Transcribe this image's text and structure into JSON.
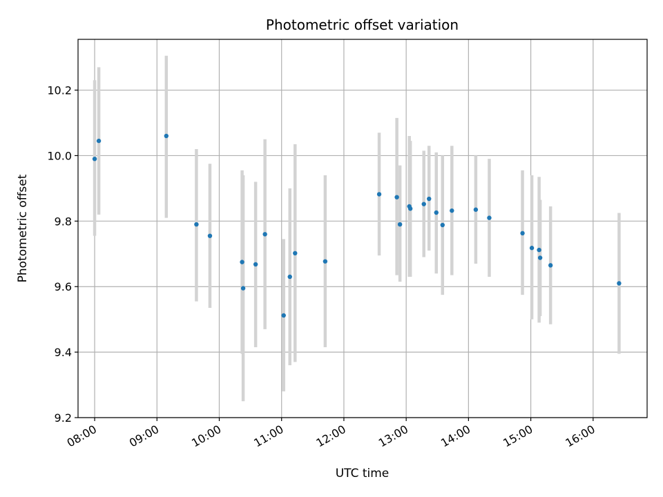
{
  "chart_data": {
    "type": "scatter",
    "title": "Photometric offset variation",
    "xlabel": "UTC time",
    "ylabel": "Photometric offset",
    "x_unit": "UTC hour of day",
    "xlim": [
      "07:44",
      "16:52"
    ],
    "ylim": [
      9.2,
      10.355
    ],
    "x_ticks": [
      "08:00",
      "09:00",
      "10:00",
      "11:00",
      "12:00",
      "13:00",
      "14:00",
      "15:00",
      "16:00"
    ],
    "y_ticks": [
      "9.2",
      "9.4",
      "9.6",
      "9.8",
      "10.0",
      "10.2"
    ],
    "grid": true,
    "colors": {
      "point": "#1f77b4",
      "errorbar": "#d3d3d3",
      "grid": "#b0b0b0"
    },
    "series": [
      {
        "points": [
          {
            "t": "08:00",
            "y": 9.99,
            "lo": 9.755,
            "hi": 10.23
          },
          {
            "t": "08:04",
            "y": 10.045,
            "lo": 9.82,
            "hi": 10.27
          },
          {
            "t": "09:09",
            "y": 10.06,
            "lo": 9.81,
            "hi": 10.305
          },
          {
            "t": "09:38",
            "y": 9.79,
            "lo": 9.555,
            "hi": 10.02
          },
          {
            "t": "09:51",
            "y": 9.755,
            "lo": 9.535,
            "hi": 9.975
          },
          {
            "t": "10:22",
            "y": 9.675,
            "lo": 9.395,
            "hi": 9.955
          },
          {
            "t": "10:23",
            "y": 9.595,
            "lo": 9.25,
            "hi": 9.94
          },
          {
            "t": "10:35",
            "y": 9.668,
            "lo": 9.415,
            "hi": 9.92
          },
          {
            "t": "10:44",
            "y": 9.76,
            "lo": 9.47,
            "hi": 10.05
          },
          {
            "t": "11:02",
            "y": 9.512,
            "lo": 9.28,
            "hi": 9.745
          },
          {
            "t": "11:08",
            "y": 9.63,
            "lo": 9.36,
            "hi": 9.9
          },
          {
            "t": "11:13",
            "y": 9.702,
            "lo": 9.37,
            "hi": 10.035
          },
          {
            "t": "11:42",
            "y": 9.677,
            "lo": 9.415,
            "hi": 9.94
          },
          {
            "t": "12:34",
            "y": 9.882,
            "lo": 9.695,
            "hi": 10.07
          },
          {
            "t": "12:51",
            "y": 9.873,
            "lo": 9.635,
            "hi": 10.115
          },
          {
            "t": "12:54",
            "y": 9.79,
            "lo": 9.615,
            "hi": 9.97
          },
          {
            "t": "13:03",
            "y": 9.845,
            "lo": 9.63,
            "hi": 10.06
          },
          {
            "t": "13:04",
            "y": 9.838,
            "lo": 9.63,
            "hi": 10.045
          },
          {
            "t": "13:17",
            "y": 9.852,
            "lo": 9.69,
            "hi": 10.015
          },
          {
            "t": "13:22",
            "y": 9.868,
            "lo": 9.71,
            "hi": 10.03
          },
          {
            "t": "13:29",
            "y": 9.826,
            "lo": 9.64,
            "hi": 10.01
          },
          {
            "t": "13:35",
            "y": 9.788,
            "lo": 9.575,
            "hi": 10.0
          },
          {
            "t": "13:44",
            "y": 9.832,
            "lo": 9.635,
            "hi": 10.03
          },
          {
            "t": "14:07",
            "y": 9.835,
            "lo": 9.67,
            "hi": 10.0
          },
          {
            "t": "14:20",
            "y": 9.81,
            "lo": 9.63,
            "hi": 9.99
          },
          {
            "t": "14:52",
            "y": 9.763,
            "lo": 9.575,
            "hi": 9.955
          },
          {
            "t": "15:01",
            "y": 9.718,
            "lo": 9.5,
            "hi": 9.94
          },
          {
            "t": "15:08",
            "y": 9.712,
            "lo": 9.49,
            "hi": 9.935
          },
          {
            "t": "15:09",
            "y": 9.688,
            "lo": 9.51,
            "hi": 9.865
          },
          {
            "t": "15:19",
            "y": 9.665,
            "lo": 9.485,
            "hi": 9.845
          },
          {
            "t": "16:25",
            "y": 9.61,
            "lo": 9.395,
            "hi": 9.825
          }
        ]
      }
    ]
  }
}
